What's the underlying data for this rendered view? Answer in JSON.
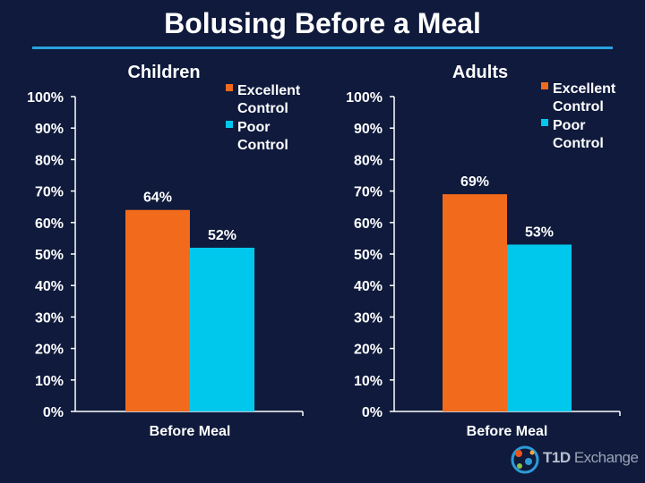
{
  "title": "Bolusing Before a Meal",
  "colors": {
    "background": "#0f1a3c",
    "excellent": "#f26a1b",
    "poor": "#00c8ec",
    "axis": "#ffffff",
    "rule": "#29a3dd"
  },
  "chart_data": [
    {
      "type": "bar",
      "title": "Children",
      "categories": [
        "Before Meal"
      ],
      "series": [
        {
          "name": "Excellent Control",
          "values": [
            64
          ],
          "labels": [
            "64%"
          ]
        },
        {
          "name": "Poor Control",
          "values": [
            52
          ],
          "labels": [
            "52%"
          ]
        }
      ],
      "legend": [
        {
          "line1": "Excellent",
          "line2": "Control"
        },
        {
          "line1": "Poor",
          "line2": "Control"
        }
      ],
      "ylim": [
        0,
        100
      ],
      "yticks": [
        "0%",
        "10%",
        "20%",
        "30%",
        "40%",
        "50%",
        "60%",
        "70%",
        "80%",
        "90%",
        "100%"
      ],
      "xlabel": "",
      "ylabel": "",
      "legend_position": "top-right"
    },
    {
      "type": "bar",
      "title": "Adults",
      "categories": [
        "Before Meal"
      ],
      "series": [
        {
          "name": "Excellent Control",
          "values": [
            69
          ],
          "labels": [
            "69%"
          ]
        },
        {
          "name": "Poor Control",
          "values": [
            53
          ],
          "labels": [
            "53%"
          ]
        }
      ],
      "legend": [
        {
          "line1": "Excellent",
          "line2": "Control"
        },
        {
          "line1": "Poor",
          "line2": "Control"
        }
      ],
      "ylim": [
        0,
        100
      ],
      "yticks": [
        "0%",
        "10%",
        "20%",
        "30%",
        "40%",
        "50%",
        "60%",
        "70%",
        "80%",
        "90%",
        "100%"
      ],
      "xlabel": "",
      "ylabel": "",
      "legend_position": "top-right"
    }
  ],
  "logo": {
    "brand_bold": "T1D",
    "brand_rest": " Exchange"
  }
}
